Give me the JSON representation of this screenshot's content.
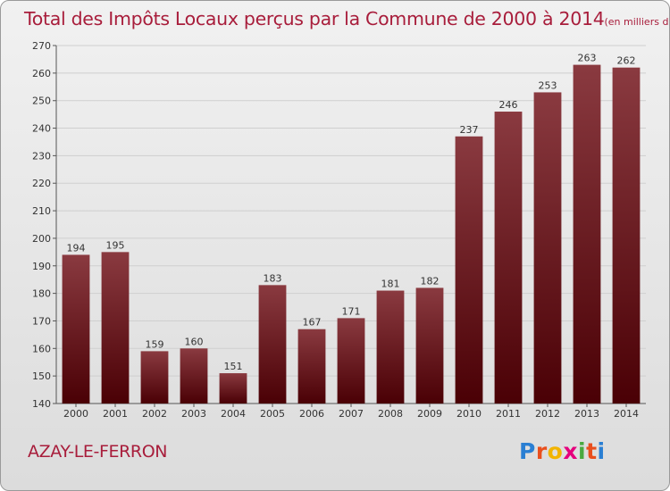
{
  "title": "Total des Impôts Locaux perçus par la Commune de 2000 à 2014",
  "unit_note": "(en milliers d'€)",
  "commune": "AZAY-LE-FERRON",
  "logo": {
    "p": "P",
    "r": "r",
    "o": "o",
    "x": "x",
    "i1": "i",
    "t": "t",
    "i2": "i"
  },
  "colors": {
    "bar_top": "#8a3a40",
    "bar_bottom": "#4a0005",
    "title": "#a81d3b",
    "grid": "#cfcfcf"
  },
  "chart_data": {
    "type": "bar",
    "title": "Total des Impôts Locaux perçus par la Commune de 2000 à 2014",
    "xlabel": "",
    "ylabel": "(en milliers d'€)",
    "categories": [
      "2000",
      "2001",
      "2002",
      "2003",
      "2004",
      "2005",
      "2006",
      "2007",
      "2008",
      "2009",
      "2010",
      "2011",
      "2012",
      "2013",
      "2014"
    ],
    "values": [
      194,
      195,
      159,
      160,
      151,
      183,
      167,
      171,
      181,
      182,
      237,
      246,
      253,
      263,
      262
    ],
    "ylim": [
      140,
      270
    ],
    "yticks": [
      140,
      150,
      160,
      170,
      180,
      190,
      200,
      210,
      220,
      230,
      240,
      250,
      260,
      270
    ],
    "grid": true
  }
}
